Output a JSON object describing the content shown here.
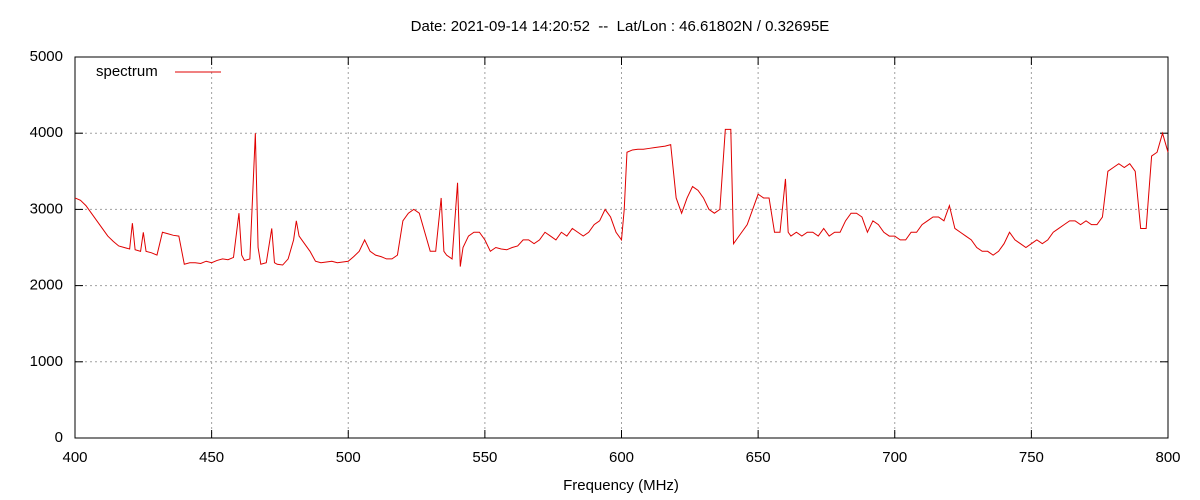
{
  "chart_data": {
    "type": "line",
    "title": "Date: 2021-09-14 14:20:52  --  Lat/Lon : 46.61802N / 0.32695E",
    "x_label": "Frequency (MHz)",
    "x": [
      400,
      402,
      404,
      406,
      408,
      410,
      412,
      414,
      416,
      418,
      420,
      421,
      422,
      424,
      425,
      426,
      428,
      430,
      432,
      434,
      436,
      438,
      440,
      442,
      444,
      446,
      448,
      450,
      452,
      454,
      456,
      458,
      460,
      461,
      462,
      464,
      466,
      467,
      468,
      470,
      472,
      473,
      474,
      476,
      478,
      480,
      481,
      482,
      484,
      486,
      488,
      490,
      492,
      494,
      496,
      498,
      500,
      502,
      504,
      506,
      508,
      510,
      512,
      514,
      516,
      518,
      520,
      522,
      524,
      526,
      528,
      530,
      532,
      534,
      535,
      536,
      538,
      540,
      541,
      542,
      544,
      546,
      548,
      550,
      552,
      554,
      556,
      558,
      560,
      562,
      564,
      566,
      568,
      570,
      572,
      574,
      576,
      578,
      580,
      582,
      584,
      586,
      588,
      590,
      592,
      594,
      596,
      598,
      600,
      601,
      602,
      604,
      606,
      608,
      610,
      612,
      614,
      616,
      618,
      620,
      622,
      624,
      626,
      628,
      630,
      632,
      634,
      636,
      638,
      640,
      641,
      642,
      644,
      646,
      648,
      650,
      652,
      654,
      656,
      658,
      660,
      661,
      662,
      664,
      666,
      668,
      670,
      672,
      674,
      676,
      678,
      680,
      682,
      684,
      686,
      688,
      690,
      692,
      694,
      696,
      698,
      700,
      702,
      704,
      706,
      708,
      710,
      712,
      714,
      716,
      718,
      720,
      722,
      724,
      726,
      728,
      730,
      732,
      734,
      736,
      738,
      740,
      742,
      744,
      746,
      748,
      750,
      752,
      754,
      756,
      758,
      760,
      762,
      764,
      766,
      768,
      770,
      772,
      774,
      776,
      778,
      780,
      782,
      784,
      786,
      788,
      790,
      792,
      794,
      796,
      798,
      800
    ],
    "series": [
      {
        "name": "spectrum",
        "color": "#e00000",
        "values": [
          3150,
          3120,
          3050,
          2950,
          2850,
          2750,
          2650,
          2580,
          2520,
          2500,
          2480,
          2820,
          2470,
          2450,
          2700,
          2450,
          2430,
          2400,
          2700,
          2680,
          2660,
          2650,
          2280,
          2300,
          2300,
          2290,
          2320,
          2300,
          2330,
          2350,
          2340,
          2370,
          2950,
          2400,
          2330,
          2350,
          4000,
          2500,
          2280,
          2300,
          2750,
          2300,
          2280,
          2270,
          2350,
          2600,
          2850,
          2650,
          2550,
          2450,
          2320,
          2300,
          2310,
          2320,
          2300,
          2310,
          2320,
          2380,
          2450,
          2600,
          2450,
          2400,
          2380,
          2350,
          2350,
          2400,
          2850,
          2950,
          3000,
          2950,
          2700,
          2450,
          2450,
          3150,
          2450,
          2400,
          2350,
          3350,
          2250,
          2500,
          2650,
          2700,
          2700,
          2600,
          2450,
          2500,
          2480,
          2470,
          2500,
          2520,
          2600,
          2600,
          2550,
          2600,
          2700,
          2650,
          2600,
          2700,
          2650,
          2750,
          2700,
          2650,
          2700,
          2800,
          2850,
          3000,
          2900,
          2700,
          2600,
          3000,
          3750,
          3780,
          3790,
          3790,
          3800,
          3810,
          3820,
          3830,
          3850,
          3150,
          2950,
          3150,
          3300,
          3250,
          3150,
          3000,
          2950,
          3000,
          4050,
          4050,
          2550,
          2600,
          2700,
          2800,
          3000,
          3200,
          3150,
          3150,
          2700,
          2700,
          3400,
          2700,
          2650,
          2700,
          2650,
          2700,
          2700,
          2650,
          2750,
          2650,
          2700,
          2700,
          2850,
          2950,
          2950,
          2900,
          2700,
          2850,
          2800,
          2700,
          2650,
          2650,
          2600,
          2600,
          2700,
          2700,
          2800,
          2850,
          2900,
          2900,
          2850,
          3050,
          2750,
          2700,
          2650,
          2600,
          2500,
          2450,
          2450,
          2400,
          2450,
          2550,
          2700,
          2600,
          2550,
          2500,
          2550,
          2600,
          2550,
          2600,
          2700,
          2750,
          2800,
          2850,
          2850,
          2800,
          2850,
          2800,
          2800,
          2900,
          3500,
          3550,
          3600,
          3550,
          3600,
          3500,
          2750,
          2750,
          3700,
          3750,
          4000,
          3750
        ]
      }
    ],
    "xlim": [
      400,
      800
    ],
    "xticks": [
      400,
      450,
      500,
      550,
      600,
      650,
      700,
      750,
      800
    ],
    "ylim": [
      0,
      5000
    ],
    "yticks": [
      0,
      1000,
      2000,
      3000,
      4000,
      5000
    ],
    "grid": true,
    "legend": "top-left"
  }
}
